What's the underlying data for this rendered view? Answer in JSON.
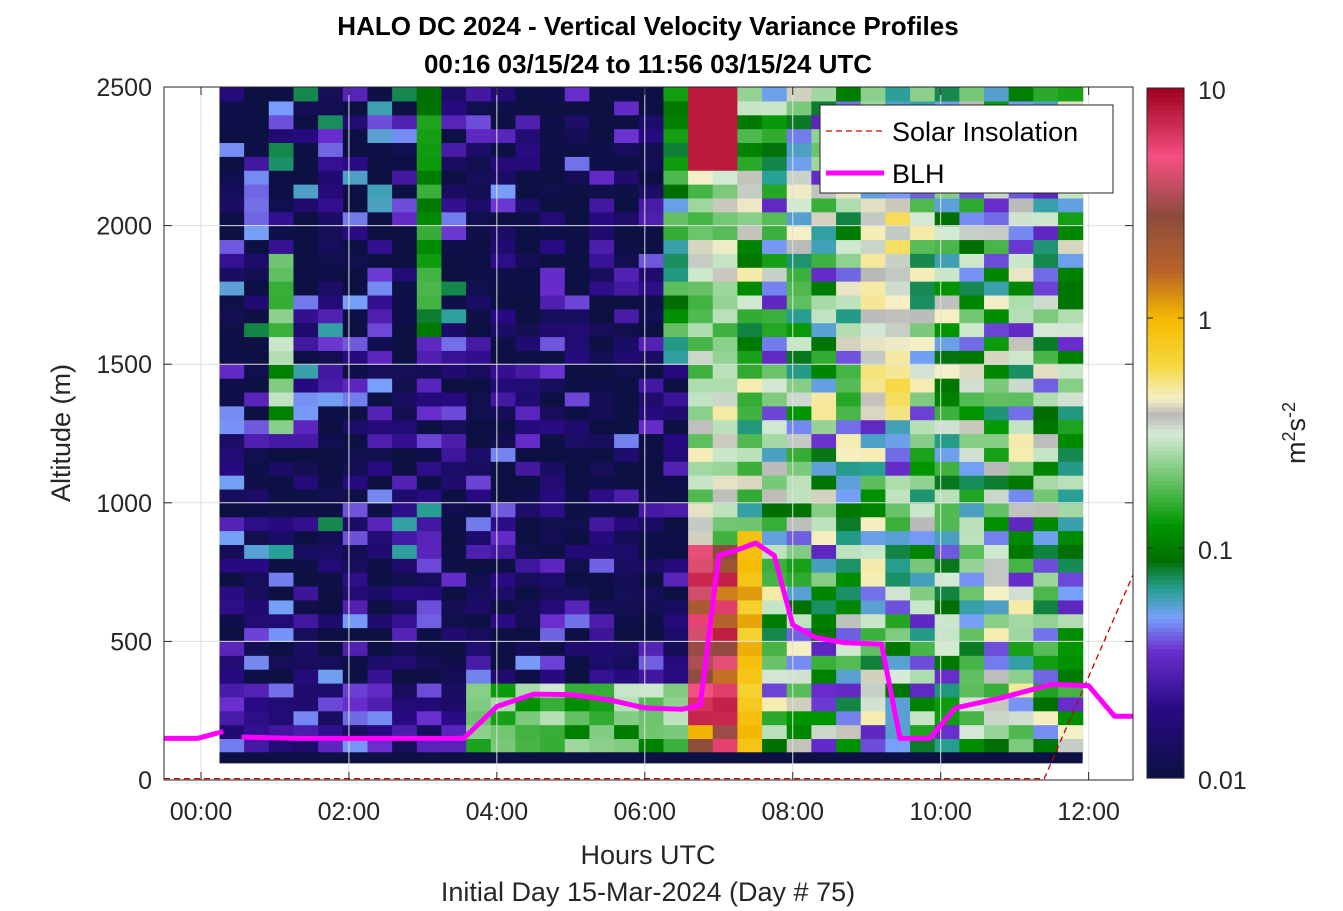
{
  "chart_data": {
    "type": "heatmap",
    "title": "HALO DC 2024 - Vertical Velocity Variance Profiles",
    "subtitle": "00:16 03/15/24 to 11:56 03/15/24  UTC",
    "xlabel": "Hours UTC",
    "xlabel2": "Initial Day 15-Mar-2024 (Day # 75)",
    "ylabel": "Altitude (m)",
    "colorbar_label_base": "m",
    "colorbar_label_sup1": "2",
    "colorbar_label_mid": "s",
    "colorbar_label_sup2": "-2",
    "xlim": [
      -0.5,
      12.6
    ],
    "ylim": [
      0,
      2500
    ],
    "xticks": [
      0,
      2,
      4,
      6,
      8,
      10,
      12
    ],
    "xtick_labels": [
      "00:00",
      "02:00",
      "04:00",
      "06:00",
      "08:00",
      "10:00",
      "12:00"
    ],
    "yticks": [
      0,
      500,
      1000,
      1500,
      2000,
      2500
    ],
    "ytick_labels": [
      "0",
      "500",
      "1000",
      "1500",
      "2000",
      "2500"
    ],
    "colorbar": {
      "scale": "log",
      "range": [
        0.01,
        10
      ],
      "ticks": [
        0.01,
        0.1,
        1,
        10
      ],
      "tick_labels": [
        "0.01",
        "0.1",
        "1",
        "10"
      ]
    },
    "grid": true,
    "legend_position": "top-right",
    "series": [
      {
        "name": "Solar Insolation",
        "style": "dashed",
        "color": "#cc0000",
        "x": [
          -0.5,
          11.4,
          12.6
        ],
        "y": [
          5,
          5,
          740
        ]
      },
      {
        "name": "BLH",
        "style": "solid",
        "color": "#ff00ff",
        "segments": [
          {
            "x": [
              -0.5,
              -0.05,
              0.3
            ],
            "y": [
              150,
              150,
              175
            ]
          },
          {
            "x": [
              0.55,
              1.3,
              2.0,
              3.0,
              3.55,
              4.0,
              4.5,
              5.0,
              5.5,
              6.0,
              6.5,
              6.75,
              7.0,
              7.2,
              7.5,
              7.75,
              8.0,
              8.3,
              8.7,
              9.2,
              9.45,
              9.85,
              10.2,
              10.8,
              11.5,
              12.0,
              12.35,
              12.6
            ],
            "y": [
              155,
              150,
              150,
              150,
              150,
              265,
              310,
              308,
              290,
              260,
              255,
              270,
              810,
              825,
              855,
              810,
              560,
              515,
              495,
              490,
              150,
              150,
              260,
              295,
              345,
              340,
              230,
              230
            ]
          }
        ]
      }
    ],
    "heatmap": {
      "x_range": [
        0.25,
        11.92
      ],
      "y_range": [
        100,
        2500
      ],
      "columns": 35,
      "rows": 48,
      "bottom_band_value": 0.01,
      "description_of_values": "log10 of vertical velocity variance"
    }
  }
}
